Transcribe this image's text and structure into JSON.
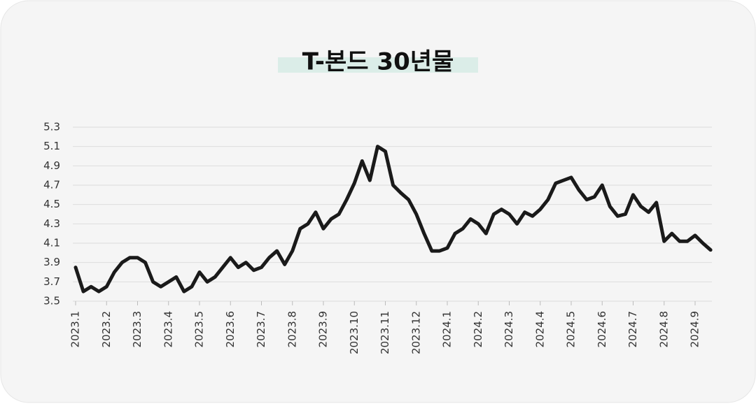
{
  "chart_data": {
    "type": "line",
    "title": "T-본드 30년물",
    "categories": [
      "2023.1",
      null,
      null,
      null,
      "2023.2",
      null,
      null,
      null,
      "2023.3",
      null,
      null,
      null,
      "2023.4",
      null,
      null,
      null,
      "2023.5",
      null,
      null,
      null,
      "2023.6",
      null,
      null,
      null,
      "2023.7",
      null,
      null,
      null,
      "2023.8",
      null,
      null,
      null,
      "2023.9",
      null,
      null,
      null,
      "2023.10",
      null,
      null,
      null,
      "2023.11",
      null,
      null,
      null,
      "2023.12",
      null,
      null,
      null,
      "2024.1",
      null,
      null,
      null,
      "2024.2",
      null,
      null,
      null,
      "2024.3",
      null,
      null,
      null,
      "2024.4",
      null,
      null,
      null,
      "2024.5",
      null,
      null,
      null,
      "2024.6",
      null,
      null,
      null,
      "2024.7",
      null,
      null,
      null,
      "2024.8",
      null,
      null,
      null,
      "2024.9",
      null,
      null
    ],
    "values": [
      3.85,
      3.6,
      3.65,
      3.6,
      3.65,
      3.8,
      3.9,
      3.95,
      3.95,
      3.9,
      3.7,
      3.65,
      3.7,
      3.75,
      3.6,
      3.65,
      3.8,
      3.7,
      3.75,
      3.85,
      3.95,
      3.85,
      3.9,
      3.82,
      3.85,
      3.95,
      4.02,
      3.88,
      4.02,
      4.25,
      4.3,
      4.42,
      4.25,
      4.35,
      4.4,
      4.55,
      4.72,
      4.95,
      4.75,
      5.1,
      5.05,
      4.7,
      4.62,
      4.55,
      4.4,
      4.2,
      4.02,
      4.02,
      4.05,
      4.2,
      4.25,
      4.35,
      4.3,
      4.2,
      4.4,
      4.45,
      4.4,
      4.3,
      4.42,
      4.38,
      4.45,
      4.55,
      4.72,
      4.75,
      4.78,
      4.65,
      4.55,
      4.58,
      4.7,
      4.48,
      4.38,
      4.4,
      4.6,
      4.48,
      4.42,
      4.52,
      4.12,
      4.2,
      4.12,
      4.12,
      4.18,
      4.1,
      4.03
    ],
    "color": "#1a1a1a",
    "ylim": [
      3.5,
      5.3
    ],
    "yticks": [
      3.5,
      3.7,
      3.9,
      4.1,
      4.3,
      4.5,
      4.7,
      4.9,
      5.1,
      5.3
    ],
    "grid": true
  }
}
